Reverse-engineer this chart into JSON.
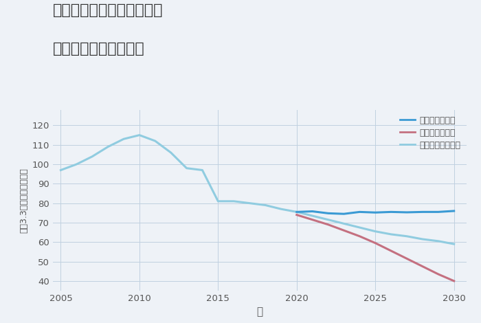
{
  "title_line1": "奈良県磯城郡三宅町但馬の",
  "title_line2": "中古戸建ての価格推移",
  "xlabel": "年",
  "ylabel": "坪（3.3㎡）単価（万円）",
  "bg_color": "#eef2f7",
  "xlim": [
    2004.5,
    2030.8
  ],
  "ylim": [
    35,
    128
  ],
  "yticks": [
    40,
    50,
    60,
    70,
    80,
    90,
    100,
    110,
    120
  ],
  "xticks": [
    2005,
    2010,
    2015,
    2020,
    2025,
    2030
  ],
  "good_scenario": {
    "label": "グッドシナリオ",
    "color": "#3a9ad4",
    "linewidth": 2.2,
    "x": [
      2020,
      2021,
      2022,
      2023,
      2024,
      2025,
      2026,
      2027,
      2028,
      2029,
      2030
    ],
    "y": [
      75.5,
      75.8,
      74.8,
      74.5,
      75.5,
      75.2,
      75.5,
      75.3,
      75.5,
      75.5,
      76.0
    ]
  },
  "bad_scenario": {
    "label": "バッドシナリオ",
    "color": "#c47080",
    "linewidth": 2.2,
    "x": [
      2020,
      2021,
      2022,
      2023,
      2024,
      2025,
      2026,
      2027,
      2028,
      2029,
      2030
    ],
    "y": [
      74.0,
      71.5,
      69.0,
      66.0,
      63.0,
      59.5,
      55.5,
      51.5,
      47.5,
      43.5,
      40.0
    ]
  },
  "normal_scenario": {
    "label": "ノーマルシナリオ",
    "color": "#90cce0",
    "linewidth": 2.2,
    "x": [
      2005,
      2006,
      2007,
      2008,
      2009,
      2010,
      2011,
      2012,
      2013,
      2014,
      2015,
      2016,
      2017,
      2018,
      2019,
      2020,
      2021,
      2022,
      2023,
      2024,
      2025,
      2026,
      2027,
      2028,
      2029,
      2030
    ],
    "y": [
      97,
      100,
      104,
      109,
      113,
      115,
      112,
      106,
      98,
      97,
      81,
      81,
      80,
      79,
      77,
      75.5,
      73.5,
      71.5,
      69.5,
      67.5,
      65.5,
      64.0,
      63.0,
      61.5,
      60.5,
      59.0
    ]
  }
}
